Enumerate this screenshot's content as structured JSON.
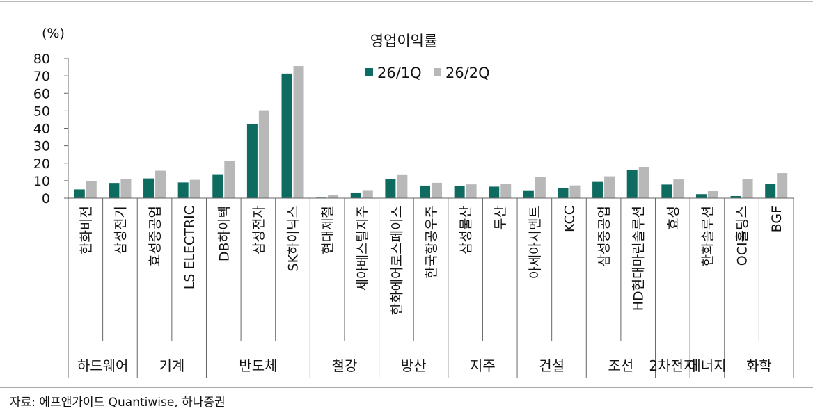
{
  "chart_data": {
    "type": "bar",
    "title": "영업이익률",
    "unit_label": "(%)",
    "ylim": [
      0,
      80
    ],
    "yticks": [
      0,
      10,
      20,
      30,
      40,
      50,
      60,
      70,
      80
    ],
    "grid": false,
    "legend_position": "top-center",
    "categories": [
      "한화비전",
      "삼성전기",
      "효성중공업",
      "LS ELECTRIC",
      "DB하이텍",
      "삼성전자",
      "SK하이닉스",
      "현대제철",
      "세아베스틸지주",
      "한화에어로스페이스",
      "한국항공우주",
      "삼성물산",
      "두산",
      "아세아시멘트",
      "KCC",
      "삼성중공업",
      "HD현대마린솔루션",
      "효성",
      "한화솔루션",
      "OCI홀딩스",
      "BGF"
    ],
    "groups": [
      {
        "label": "하드웨어",
        "count": 2
      },
      {
        "label": "기계",
        "count": 2
      },
      {
        "label": "반도체",
        "count": 3
      },
      {
        "label": "철강",
        "count": 2
      },
      {
        "label": "방산",
        "count": 2
      },
      {
        "label": "지주",
        "count": 2
      },
      {
        "label": "건설",
        "count": 2
      },
      {
        "label": "조선",
        "count": 2
      },
      {
        "label": "2차전지",
        "count": 1
      },
      {
        "label": "에너지",
        "count": 1
      },
      {
        "label": "화학",
        "count": 2
      }
    ],
    "series": [
      {
        "name": "26/1Q",
        "color": "#0e6b60",
        "values": [
          5.0,
          8.7,
          11.3,
          9.0,
          13.7,
          42.5,
          71.3,
          0.3,
          3.2,
          11.0,
          7.2,
          7.0,
          6.6,
          4.5,
          5.8,
          9.3,
          16.3,
          7.8,
          2.3,
          1.2,
          8.0
        ]
      },
      {
        "name": "26/2Q",
        "color": "#b8b8b8",
        "values": [
          9.7,
          11.0,
          15.7,
          10.5,
          21.4,
          50.3,
          75.6,
          1.8,
          4.6,
          13.6,
          8.8,
          7.9,
          8.3,
          12.0,
          7.3,
          12.5,
          17.9,
          10.7,
          4.2,
          10.9,
          14.3
        ]
      }
    ]
  },
  "source_text": "자료: 에프앤가이드 Quantiwise, 하나증권"
}
